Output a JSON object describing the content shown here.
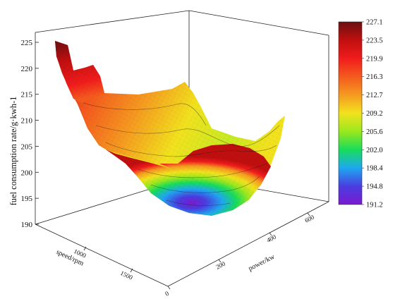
{
  "chart_data": {
    "type": "surface3d",
    "title": "",
    "zlabel": "fuel consumption rate/g·kwh-1",
    "xlabel": "speed/rpm",
    "ylabel": "power/kw",
    "z_ticks": [
      "190",
      "195",
      "200",
      "205",
      "210",
      "215",
      "220",
      "225"
    ],
    "zlim": [
      190,
      227.1
    ],
    "speed_ticks": [
      "1000",
      "1500"
    ],
    "power_ticks": [
      "0",
      "200",
      "400",
      "600"
    ],
    "colorbar": {
      "min": 191.2,
      "max": 227.1,
      "labels": [
        "227.1",
        "223.5",
        "219.9",
        "216.3",
        "212.7",
        "209.2",
        "205.6",
        "202.0",
        "198.4",
        "194.8",
        "191.2"
      ],
      "colors": [
        "#6a0f12",
        "#c00f0f",
        "#f01c1c",
        "#f45a1e",
        "#f59a20",
        "#f2e21e",
        "#9ae81e",
        "#18dc5a",
        "#1ea8f0",
        "#4a3de0",
        "#7a1ad0"
      ]
    },
    "surface": {
      "min_value": 191.2,
      "min_location": "bowl bottom, mid speed / mid power",
      "max_value": 227.1,
      "max_location": "low power, low speed corner",
      "shape": "bowl"
    },
    "grid": true
  }
}
